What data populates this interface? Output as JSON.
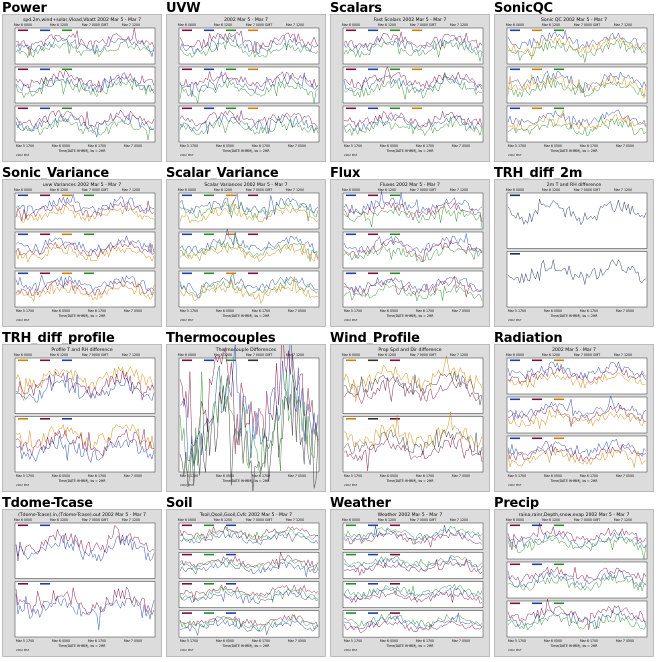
{
  "panels": [
    {
      "name": "Power",
      "title": "spd.2m,wind+solar,Vload,Vbatt 2002 Mar 5 - Mar 7",
      "kind": "time",
      "subplots": 3,
      "colors": [
        "#7a0f3f",
        "#1f3fa8",
        "#2a8a2a"
      ]
    },
    {
      "name": "UVW",
      "title": "2002 Mar 5 - Mar 7",
      "kind": "time",
      "subplots": 3,
      "colors": [
        "#7a0f3f",
        "#1f3fa8",
        "#2a8a2a",
        "#d08000"
      ]
    },
    {
      "name": "Scalars",
      "title": "Fast Scalars 2002 Mar 5 - Mar 7",
      "kind": "time",
      "subplots": 3,
      "colors": [
        "#7a0f3f",
        "#1f3fa8",
        "#2a8a2a",
        "#d08000"
      ]
    },
    {
      "name": "SonicQC",
      "title": "Sonic QC 2002 Mar 5 - Mar 7",
      "kind": "time",
      "subplots": 3,
      "colors": [
        "#1f3fa8",
        "#d08000",
        "#2a8a2a"
      ]
    },
    {
      "name": "Sonic_Variance",
      "title": "uvw Variances 2002 Mar 5 - Mar 7",
      "kind": "time",
      "subplots": 3,
      "colors": [
        "#1f3fa8",
        "#7a0f3f",
        "#d08000",
        "#2a8a2a"
      ]
    },
    {
      "name": "Scalar_Variance",
      "title": "Scalar Variances 2002 Mar 5 - Mar 7",
      "kind": "time",
      "subplots": 3,
      "colors": [
        "#1f3fa8",
        "#2a8a2a",
        "#d08000",
        "#7a0f3f"
      ]
    },
    {
      "name": "Flux",
      "title": "Fluxes 2002 Mar 5 - Mar 7",
      "kind": "time",
      "subplots": 3,
      "colors": [
        "#1f3fa8",
        "#7a0f3f",
        "#2a8a2a"
      ]
    },
    {
      "name": "TRH_diff_2m",
      "title": "2m T and RH difference",
      "kind": "time",
      "subplots": 2,
      "colors": [
        "#1a2a5a"
      ]
    },
    {
      "name": "TRH_diff_profile",
      "title": "Profile T and RH difference",
      "kind": "time",
      "subplots": 2,
      "colors": [
        "#d08000",
        "#7a0f3f",
        "#1f3fa8"
      ]
    },
    {
      "name": "Thermocouples",
      "title": "Thermocouple Differences",
      "kind": "single",
      "subplots": 1,
      "colors": [
        "#7a0f3f",
        "#1f3fa8",
        "#2a8a2a",
        "#333333"
      ]
    },
    {
      "name": "Wind_Profile",
      "title": "Prop Spd and Dir difference",
      "kind": "time",
      "subplots": 2,
      "colors": [
        "#d08000",
        "#333333",
        "#7a0f3f"
      ]
    },
    {
      "name": "Radiation",
      "title": "2002 Mar 5 - Mar 7",
      "kind": "time",
      "subplots": 3,
      "colors": [
        "#1f3fa8",
        "#7a0f3f",
        "#d08000"
      ]
    },
    {
      "name": "Tdome-Tcase",
      "title": "(Tdome-Tcase).in,(Tdome-Tcase).out 2002 Mar 5 - Mar 7",
      "kind": "time",
      "subplots": 2,
      "colors": [
        "#7a0f3f",
        "#1f3fa8"
      ]
    },
    {
      "name": "Soil",
      "title": "Tsoil,Qsoil,Gsoil,Cvfc 2002 Mar 5 - Mar 7",
      "kind": "time",
      "subplots": 4,
      "colors": [
        "#7a0f3f",
        "#2a8a2a",
        "#1f3fa8"
      ]
    },
    {
      "name": "Weather",
      "title": "Weather 2002 Mar 5 - Mar 7",
      "kind": "time",
      "subplots": 4,
      "colors": [
        "#2a8a2a",
        "#1f3fa8",
        "#7a0f3f"
      ]
    },
    {
      "name": "Precip",
      "title": "raina,rainr,Depth,snow,evap 2002 Mar 5 - Mar 7",
      "kind": "time",
      "subplots": 3,
      "colors": [
        "#7a0f3f",
        "#1f3fa8",
        "#2a8a2a"
      ]
    }
  ],
  "axis": {
    "top_ticks": [
      "Mar  6 0000",
      "Mar  6 1200",
      "Mar  7 0000 GMT",
      "Mar  7 1200"
    ],
    "bottom_ticks": [
      "Mar  5 1700",
      "Mar  6 0500",
      "Mar  6 1700",
      "Mar  7 0500"
    ],
    "bottom_label": "Time(DATE HHMM), bs = 2HR",
    "year_label": "2002 MST"
  }
}
